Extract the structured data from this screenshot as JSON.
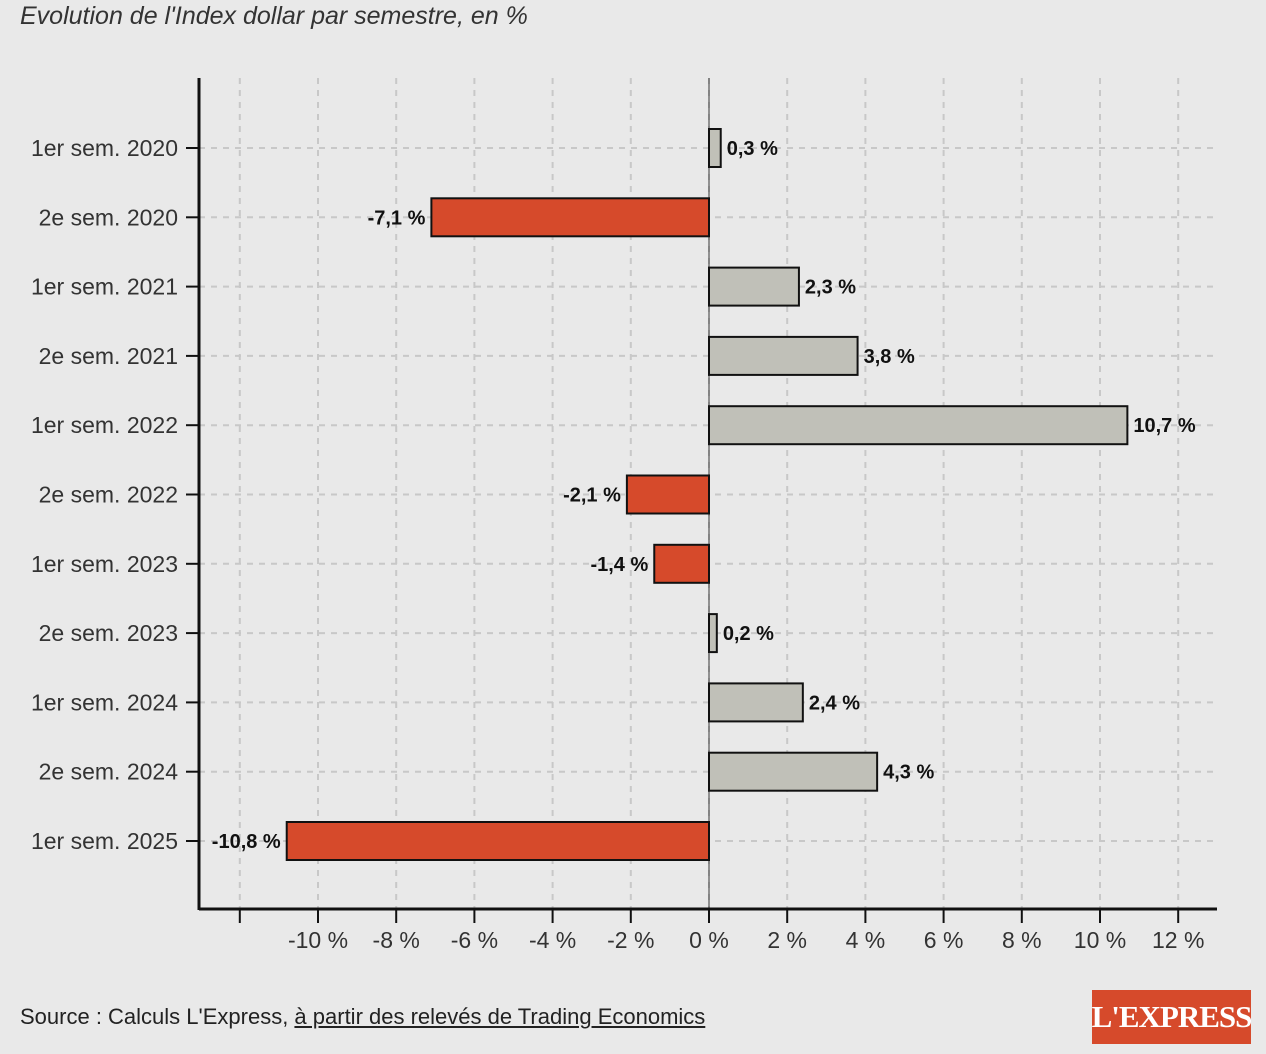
{
  "title": "Evolution de l'Index dollar par semestre, en %",
  "source": {
    "prefix": "Source : Calculs L'Express, ",
    "link_text": "à partir des relevés de Trading Economics"
  },
  "logo_text": "L'EXPRESS",
  "colors": {
    "positive": "#c0c0b8",
    "negative": "#d64a2b",
    "grid": "#c8c8c8",
    "axis": "#111111"
  },
  "chart_data": {
    "type": "bar",
    "orientation": "horizontal",
    "categories": [
      "1er sem. 2020",
      "2e sem. 2020",
      "1er sem. 2021",
      "2e sem. 2021",
      "1er sem. 2022",
      "2e sem. 2022",
      "1er sem. 2023",
      "2e sem. 2023",
      "1er sem. 2024",
      "2e sem. 2024",
      "1er sem. 2025"
    ],
    "values": [
      0.3,
      -7.1,
      2.3,
      3.8,
      10.7,
      -2.1,
      -1.4,
      0.2,
      2.4,
      4.3,
      -10.8
    ],
    "value_labels": [
      "0,3 %",
      "-7,1 %",
      "2,3 %",
      "3,8 %",
      "10,7 %",
      "-2,1 %",
      "-1,4 %",
      "0,2 %",
      "2,4 %",
      "4,3 %",
      "-10,8 %"
    ],
    "xticks": [
      -10,
      -8,
      -6,
      -4,
      -2,
      0,
      2,
      4,
      6,
      8,
      10,
      12
    ],
    "xtick_labels": [
      "-10 %",
      "-8 %",
      "-6 %",
      "-4 %",
      "-2 %",
      "0 %",
      "2 %",
      "4 %",
      "6 %",
      "8 %",
      "10 %",
      "12 %"
    ],
    "xlim": [
      -13,
      13
    ],
    "grid": true,
    "xlabel": "",
    "ylabel": ""
  }
}
